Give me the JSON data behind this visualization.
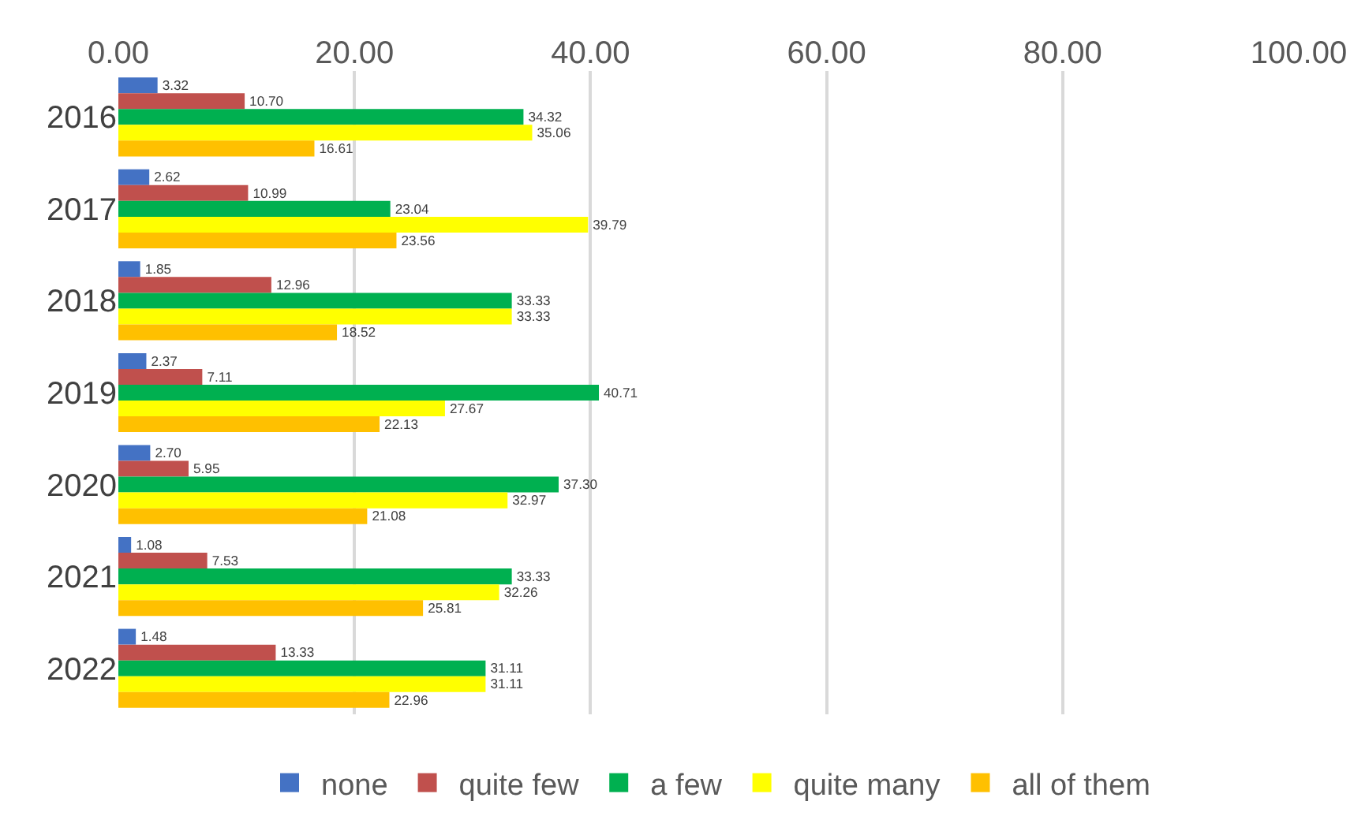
{
  "chart_data": {
    "type": "bar",
    "orientation": "horizontal",
    "categories": [
      "2016",
      "2017",
      "2018",
      "2019",
      "2020",
      "2021",
      "2022"
    ],
    "series": [
      {
        "name": "none",
        "color": "#4472c4",
        "values": [
          3.32,
          2.62,
          1.85,
          2.37,
          2.7,
          1.08,
          1.48
        ],
        "value_labels": [
          "3.32",
          "2.62",
          "1.85",
          "2.37",
          "2.70",
          "1.08",
          "1.48"
        ]
      },
      {
        "name": "quite few",
        "color": "#c0504d",
        "values": [
          10.7,
          10.99,
          12.96,
          7.11,
          5.95,
          7.53,
          13.33
        ],
        "value_labels": [
          "10.70",
          "10.99",
          "12.96",
          "7.11",
          "5.95",
          "7.53",
          "13.33"
        ]
      },
      {
        "name": "a few",
        "color": "#00b050",
        "values": [
          34.32,
          23.04,
          33.33,
          40.71,
          37.3,
          33.33,
          31.11
        ],
        "value_labels": [
          "34.32",
          "23.04",
          "33.33",
          "40.71",
          "37.30",
          "33.33",
          "31.11"
        ]
      },
      {
        "name": "quite many",
        "color": "#ffff00",
        "values": [
          35.06,
          39.79,
          33.33,
          27.67,
          32.97,
          32.26,
          31.11
        ],
        "value_labels": [
          "35.06",
          "39.79",
          "33.33",
          "27.67",
          "32.97",
          "32.26",
          "31.11"
        ]
      },
      {
        "name": "all of them",
        "color": "#ffc000",
        "values": [
          16.61,
          23.56,
          18.52,
          22.13,
          21.08,
          25.81,
          22.96
        ],
        "value_labels": [
          "16.61",
          "23.56",
          "18.52",
          "22.13",
          "21.08",
          "25.81",
          "22.96"
        ]
      }
    ],
    "xlim": [
      0,
      100
    ],
    "xticks": [
      {
        "value": 0,
        "label": "0.00"
      },
      {
        "value": 20,
        "label": "20.00"
      },
      {
        "value": 40,
        "label": "40.00"
      },
      {
        "value": 60,
        "label": "60.00"
      },
      {
        "value": 80,
        "label": "80.00"
      },
      {
        "value": 100,
        "label": "100.00"
      }
    ],
    "grid": "x",
    "legend": "bottom"
  }
}
